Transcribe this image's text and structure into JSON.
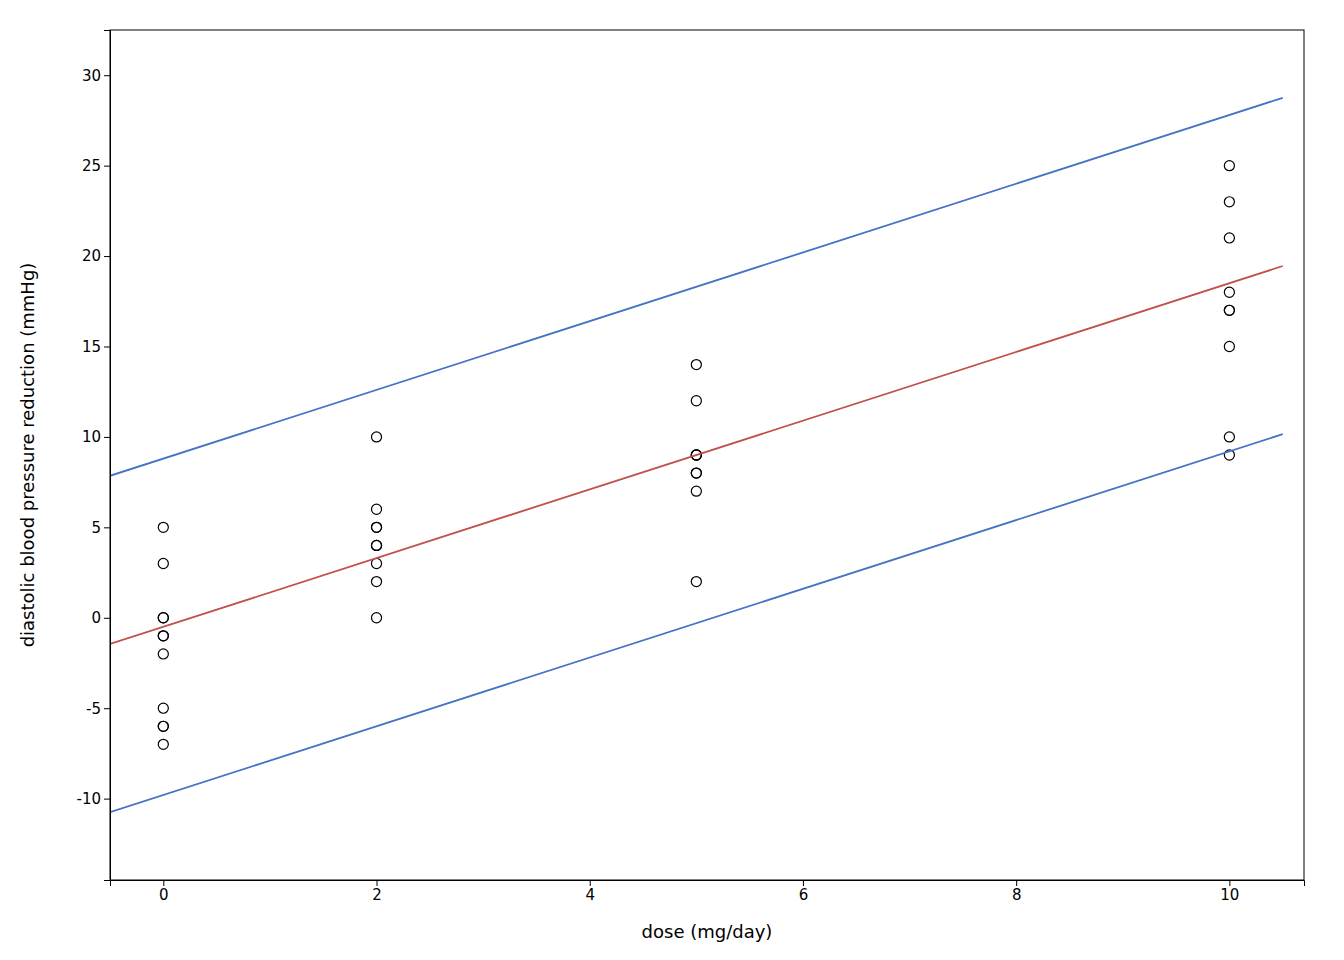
{
  "chart_data": {
    "type": "scatter",
    "xlabel": "dose (mg/day)",
    "ylabel": "diastolic blood pressure reduction (mmHg)",
    "series": [
      {
        "type": "scatter",
        "marker": "circle",
        "color": "black",
        "x": [
          0,
          0,
          0,
          0,
          0,
          0,
          0,
          0,
          0,
          0,
          0,
          2,
          2,
          2,
          2,
          2,
          2,
          2,
          2,
          2,
          5,
          5,
          5,
          5,
          5,
          5,
          5,
          5,
          5,
          10,
          10,
          10,
          10,
          10,
          10,
          10,
          10,
          10
        ],
        "values": [
          5,
          3,
          0,
          0,
          -1,
          -1,
          -2,
          -5,
          -6,
          -6,
          -7,
          10,
          6,
          5,
          5,
          4,
          4,
          3,
          2,
          0,
          14,
          12,
          9,
          9,
          9,
          8,
          8,
          7,
          2,
          25,
          23,
          21,
          18,
          17,
          17,
          15,
          10,
          9
        ]
      },
      {
        "type": "line",
        "color": "#c0504d",
        "x": [
          -0.5,
          10.5
        ],
        "values": [
          -1.45,
          19.45
        ]
      },
      {
        "type": "line",
        "color": "#4472c4",
        "x": [
          -0.5,
          10.5
        ],
        "values": [
          7.85,
          28.75
        ]
      },
      {
        "type": "line",
        "color": "#4472c4",
        "x": [
          -0.5,
          10.5
        ],
        "values": [
          -10.75,
          10.15
        ]
      }
    ],
    "xlim": [
      -0.5,
      10.7
    ],
    "ylim": [
      -14.5,
      32.5
    ],
    "xticks": [
      0,
      2,
      4,
      6,
      8,
      10
    ],
    "yticks": [
      -10,
      -5,
      0,
      5,
      10,
      15,
      20,
      25,
      30
    ],
    "grid": false
  }
}
